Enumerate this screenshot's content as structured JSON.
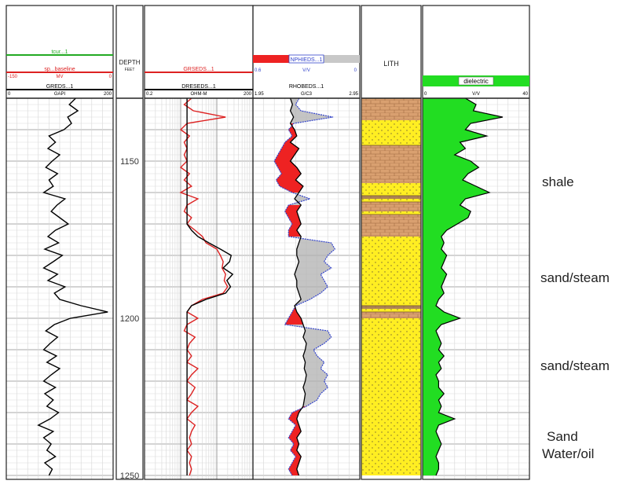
{
  "chart_data": {
    "type": "line",
    "depth_axis": {
      "label": "DEPTH",
      "unit": "FEET",
      "range": [
        1130,
        1250
      ],
      "ticks": [
        1150,
        1200,
        1250
      ]
    },
    "tracks": [
      {
        "id": "track1",
        "header_curves": [
          {
            "name": "tcur...1",
            "color": "#22aa22",
            "scale": {
              "left": "",
              "unit": "",
              "right": ""
            }
          },
          {
            "name": "sp...baseline",
            "color": "#dd2222",
            "scale": {
              "left": "-150",
              "unit": "MV",
              "right": "0"
            }
          },
          {
            "name": "GREDS...1",
            "color": "#000000",
            "scale": {
              "left": "0",
              "unit": "GAPI",
              "right": "200"
            }
          }
        ],
        "curves": [
          {
            "name": "GREDS...1",
            "color": "#000000",
            "xrange": [
              0,
              200
            ],
            "depth": [
              1130,
              1132,
              1134,
              1136,
              1138,
              1140,
              1142,
              1144,
              1146,
              1148,
              1150,
              1152,
              1154,
              1156,
              1158,
              1160,
              1162,
              1164,
              1166,
              1168,
              1170,
              1172,
              1174,
              1176,
              1178,
              1180,
              1182,
              1184,
              1186,
              1188,
              1190,
              1192,
              1194,
              1196,
              1198,
              1200,
              1202,
              1204,
              1206,
              1208,
              1210,
              1212,
              1214,
              1216,
              1218,
              1220,
              1222,
              1224,
              1226,
              1228,
              1230,
              1232,
              1234,
              1236,
              1238,
              1240,
              1242,
              1244,
              1246,
              1248,
              1250
            ],
            "values": [
              130,
              118,
              134,
              115,
              122,
              108,
              80,
              92,
              78,
              100,
              86,
              74,
              96,
              80,
              88,
              70,
              110,
              95,
              84,
              100,
              116,
              92,
              78,
              98,
              72,
              105,
              88,
              70,
              96,
              78,
              110,
              90,
              100,
              140,
              190,
              120,
              90,
              74,
              96,
              82,
              70,
              94,
              76,
              100,
              84,
              70,
              92,
              72,
              88,
              76,
              98,
              82,
              60,
              88,
              70,
              84,
              76,
              92,
              72,
              86,
              80
            ]
          }
        ]
      },
      {
        "id": "track3",
        "header_curves": [
          {
            "name": "GRSEDS...1",
            "color": "#dd2222",
            "scale": {
              "left": "",
              "unit": "",
              "right": ""
            }
          },
          {
            "name": "DRESEDS...1",
            "color": "#000000",
            "scale": {
              "left": "0.2",
              "unit": "OHM-M",
              "right": "200"
            }
          }
        ],
        "curves": [
          {
            "name": "GRSEDS...1",
            "color": "#dd2222",
            "xrange": [
              0.2,
              200
            ],
            "depth": [
              1130,
              1132,
              1134,
              1136,
              1138,
              1140,
              1142,
              1144,
              1146,
              1148,
              1150,
              1152,
              1154,
              1156,
              1158,
              1160,
              1162,
              1164,
              1166,
              1168,
              1170,
              1172,
              1174,
              1176,
              1178,
              1180,
              1182,
              1184,
              1186,
              1188,
              1190,
              1192,
              1194,
              1196,
              1198,
              1200,
              1202,
              1204,
              1206,
              1208,
              1210,
              1212,
              1214,
              1216,
              1218,
              1220,
              1222,
              1224,
              1226,
              1228,
              1230,
              1232,
              1234,
              1236,
              1238,
              1240,
              1242,
              1244,
              1246,
              1248,
              1250
            ],
            "values": [
              4,
              2.5,
              4.5,
              35,
              3,
              2,
              3.5,
              2.5,
              3,
              2.5,
              3,
              2,
              3.5,
              2.5,
              4,
              2,
              6,
              3,
              2.5,
              4,
              3,
              5,
              8,
              10,
              20,
              25,
              30,
              28,
              35,
              32,
              40,
              30,
              8,
              4,
              3,
              6,
              3,
              2.5,
              5,
              3.5,
              3,
              4,
              3,
              6,
              4,
              3,
              5,
              4,
              3,
              6,
              4,
              3,
              5,
              4,
              3.5,
              4,
              3,
              4,
              3.5,
              4,
              3.5
            ]
          },
          {
            "name": "DRESEDS...1",
            "color": "#000000",
            "xrange": [
              0.2,
              200
            ],
            "depth": [
              1130,
              1132,
              1134,
              1136,
              1138,
              1140,
              1142,
              1144,
              1146,
              1148,
              1150,
              1152,
              1154,
              1156,
              1158,
              1160,
              1162,
              1164,
              1166,
              1168,
              1170,
              1172,
              1174,
              1176,
              1178,
              1180,
              1182,
              1184,
              1186,
              1188,
              1190,
              1192,
              1194,
              1196,
              1198,
              1200,
              1202,
              1204,
              1206,
              1208,
              1210,
              1212,
              1214,
              1216,
              1218,
              1220,
              1222,
              1224,
              1226,
              1228,
              1230,
              1232,
              1234,
              1236,
              1238,
              1240,
              1242,
              1244,
              1246,
              1248,
              1250
            ],
            "values": [
              3,
              3,
              3,
              3,
              3,
              3,
              3,
              3,
              3,
              3,
              3,
              3,
              3,
              3,
              3,
              3,
              3,
              3,
              3,
              3,
              3,
              4,
              6,
              12,
              25,
              50,
              45,
              30,
              55,
              38,
              48,
              35,
              10,
              4,
              3,
              3,
              3,
              3,
              3,
              3,
              3,
              3,
              3,
              3,
              3,
              3,
              3,
              3,
              3,
              3,
              3,
              3,
              3,
              3,
              3,
              3,
              3,
              3,
              3,
              3,
              3
            ]
          }
        ]
      },
      {
        "id": "track4",
        "header_curves": [
          {
            "name": "NPHIEDS...1",
            "color": "#3344cc",
            "scale": {
              "left": "0.6",
              "unit": "V/V",
              "right": "0"
            }
          },
          {
            "name": "RHOBEDS...1",
            "color": "#000000",
            "scale": {
              "left": "1.95",
              "unit": "G/C3",
              "right": "2.95"
            }
          }
        ],
        "curves": [
          {
            "name": "RHOBEDS...1",
            "color": "#000000",
            "xrange": [
              1.95,
              2.95
            ],
            "depth": [
              1130,
              1132,
              1134,
              1136,
              1138,
              1140,
              1142,
              1144,
              1146,
              1148,
              1150,
              1152,
              1154,
              1156,
              1158,
              1160,
              1162,
              1164,
              1166,
              1168,
              1170,
              1172,
              1174,
              1176,
              1178,
              1180,
              1182,
              1184,
              1186,
              1188,
              1190,
              1192,
              1194,
              1196,
              1198,
              1200,
              1202,
              1204,
              1206,
              1208,
              1210,
              1212,
              1214,
              1216,
              1218,
              1220,
              1222,
              1224,
              1226,
              1228,
              1230,
              1232,
              1234,
              1236,
              1238,
              1240,
              1242,
              1244,
              1246,
              1248,
              1250
            ],
            "values": [
              2.3,
              2.32,
              2.3,
              2.33,
              2.3,
              2.34,
              2.36,
              2.3,
              2.38,
              2.34,
              2.3,
              2.36,
              2.4,
              2.35,
              2.42,
              2.38,
              2.34,
              2.4,
              2.36,
              2.38,
              2.4,
              2.36,
              2.4,
              2.38,
              2.36,
              2.36,
              2.38,
              2.36,
              2.34,
              2.36,
              2.36,
              2.38,
              2.4,
              2.34,
              2.36,
              2.4,
              2.42,
              2.44,
              2.42,
              2.45,
              2.44,
              2.42,
              2.44,
              2.43,
              2.45,
              2.44,
              2.42,
              2.44,
              2.43,
              2.42,
              2.38,
              2.36,
              2.38,
              2.4,
              2.36,
              2.38,
              2.36,
              2.4,
              2.38,
              2.36,
              2.38
            ]
          },
          {
            "name": "NPHIEDS...1",
            "color": "#3344cc",
            "xrange": [
              0.6,
              0
            ],
            "depth": [
              1130,
              1132,
              1134,
              1136,
              1138,
              1140,
              1142,
              1144,
              1146,
              1148,
              1150,
              1152,
              1154,
              1156,
              1158,
              1160,
              1162,
              1164,
              1166,
              1168,
              1170,
              1172,
              1174,
              1176,
              1178,
              1180,
              1182,
              1184,
              1186,
              1188,
              1190,
              1192,
              1194,
              1196,
              1198,
              1200,
              1202,
              1204,
              1206,
              1208,
              1210,
              1212,
              1214,
              1216,
              1218,
              1220,
              1222,
              1224,
              1226,
              1228,
              1230,
              1232,
              1234,
              1236,
              1238,
              1240,
              1242,
              1244,
              1246,
              1248,
              1250
            ],
            "values": [
              0.34,
              0.36,
              0.33,
              0.15,
              0.37,
              0.4,
              0.38,
              0.42,
              0.44,
              0.46,
              0.48,
              0.46,
              0.44,
              0.47,
              0.45,
              0.38,
              0.28,
              0.4,
              0.42,
              0.4,
              0.38,
              0.4,
              0.4,
              0.16,
              0.14,
              0.18,
              0.2,
              0.16,
              0.22,
              0.2,
              0.18,
              0.22,
              0.28,
              0.36,
              0.38,
              0.4,
              0.42,
              0.18,
              0.16,
              0.2,
              0.26,
              0.24,
              0.2,
              0.22,
              0.18,
              0.2,
              0.18,
              0.22,
              0.24,
              0.3,
              0.38,
              0.4,
              0.36,
              0.38,
              0.4,
              0.37,
              0.39,
              0.36,
              0.38,
              0.4,
              0.38
            ]
          }
        ]
      },
      {
        "id": "lith",
        "title": "LITH",
        "colors": {
          "shale": "#d9a070",
          "sand": "#ffee22",
          "silt": "#b08858"
        },
        "intervals": [
          {
            "top": 1130,
            "bottom": 1137,
            "type": "shale"
          },
          {
            "top": 1137,
            "bottom": 1145,
            "type": "sand"
          },
          {
            "top": 1145,
            "bottom": 1157,
            "type": "shale"
          },
          {
            "top": 1157,
            "bottom": 1161,
            "type": "sand"
          },
          {
            "top": 1161,
            "bottom": 1162,
            "type": "silt"
          },
          {
            "top": 1162,
            "bottom": 1163,
            "type": "sand"
          },
          {
            "top": 1163,
            "bottom": 1166,
            "type": "shale"
          },
          {
            "top": 1166,
            "bottom": 1167,
            "type": "sand"
          },
          {
            "top": 1167,
            "bottom": 1174,
            "type": "shale"
          },
          {
            "top": 1174,
            "bottom": 1196,
            "type": "sand"
          },
          {
            "top": 1196,
            "bottom": 1197,
            "type": "silt"
          },
          {
            "top": 1197,
            "bottom": 1198,
            "type": "sand"
          },
          {
            "top": 1198,
            "bottom": 1200,
            "type": "shale"
          },
          {
            "top": 1200,
            "bottom": 1250,
            "type": "sand"
          }
        ]
      },
      {
        "id": "dielectric",
        "header_curves": [
          {
            "name": "dielectric",
            "color": "#22dd22",
            "scale": {
              "left": "0",
              "unit": "V/V",
              "right": "40"
            }
          }
        ],
        "curves": [
          {
            "name": "dielectric",
            "color": "#22dd22",
            "xrange": [
              0,
              40
            ],
            "depth": [
              1130,
              1132,
              1134,
              1136,
              1138,
              1140,
              1142,
              1144,
              1146,
              1148,
              1150,
              1152,
              1154,
              1156,
              1158,
              1160,
              1162,
              1164,
              1166,
              1168,
              1170,
              1172,
              1174,
              1176,
              1178,
              1180,
              1182,
              1184,
              1186,
              1188,
              1190,
              1192,
              1194,
              1196,
              1198,
              1200,
              1202,
              1204,
              1206,
              1208,
              1210,
              1212,
              1214,
              1216,
              1218,
              1220,
              1222,
              1224,
              1226,
              1228,
              1230,
              1232,
              1234,
              1236,
              1238,
              1240,
              1242,
              1244,
              1246,
              1248,
              1250
            ],
            "values": [
              16,
              20,
              19,
              30,
              18,
              16,
              24,
              14,
              16,
              12,
              18,
              21,
              17,
              15,
              20,
              25,
              16,
              14,
              18,
              17,
              13,
              9,
              7,
              8,
              7,
              9,
              8,
              7,
              9,
              8,
              7,
              8,
              6,
              5,
              8,
              14,
              7,
              5,
              6,
              7,
              6,
              8,
              6,
              7,
              5,
              6,
              6,
              8,
              6,
              7,
              6,
              12,
              6,
              5,
              6,
              7,
              6,
              5,
              6,
              6,
              5
            ]
          }
        ]
      }
    ],
    "annotations": [
      "shale",
      "sand/steam",
      "sand/steam",
      "Sand",
      "Water/oil"
    ]
  }
}
